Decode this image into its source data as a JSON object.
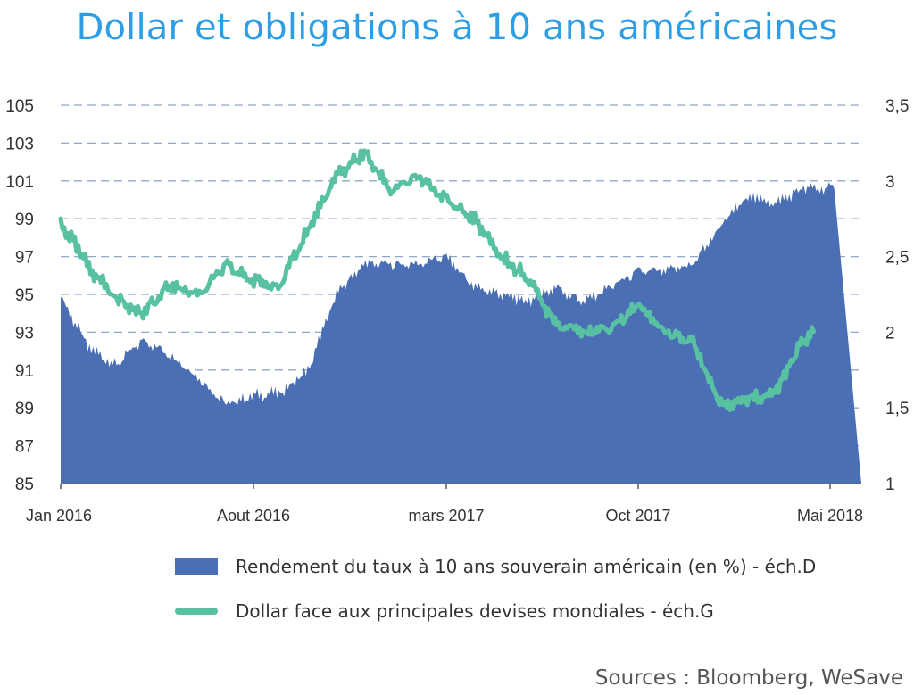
{
  "title": "Dollar et obligations à 10 ans américaines",
  "source": "Sources : Bloomberg, WeSave",
  "colors": {
    "bar": "#4a6fb5",
    "line": "#58c1a1",
    "grid": "#8fa8c8",
    "title": "#2d9ee6"
  },
  "chart_data": {
    "type": "area",
    "title": "Dollar et obligations à 10 ans américaines",
    "grid": "horizontal dashed",
    "legend_position": "bottom",
    "x_ticks": [
      "Jan 2016",
      "Aout 2016",
      "mars 2017",
      "Oct 2017",
      "Mai 2018"
    ],
    "y_left": {
      "ticks": [
        "85",
        "87",
        "89",
        "91",
        "93",
        "95",
        "97",
        "99",
        "101",
        "103",
        "105"
      ],
      "range": [
        85,
        105
      ]
    },
    "y_right": {
      "ticks": [
        "1",
        "1,5",
        "2",
        "2,5",
        "3",
        "3,5"
      ],
      "range": [
        1,
        3.5
      ]
    },
    "x_months": [
      "2016-01",
      "2016-02",
      "2016-03",
      "2016-04",
      "2016-05",
      "2016-06",
      "2016-07",
      "2016-08",
      "2016-09",
      "2016-10",
      "2016-11",
      "2016-12",
      "2017-01",
      "2017-02",
      "2017-03",
      "2017-04",
      "2017-05",
      "2017-06",
      "2017-07",
      "2017-08",
      "2017-09",
      "2017-10",
      "2017-11",
      "2017-12",
      "2018-01",
      "2018-02",
      "2018-03",
      "2018-04",
      "2018-05"
    ],
    "series": [
      {
        "name": "Rendement du taux à 10 ans souverain américain (en %) - éch.D",
        "axis": "right",
        "style": "area",
        "values": [
          2.24,
          1.9,
          1.78,
          1.95,
          1.85,
          1.7,
          1.52,
          1.58,
          1.6,
          1.75,
          2.25,
          2.45,
          2.45,
          2.45,
          2.5,
          2.3,
          2.25,
          2.2,
          2.3,
          2.2,
          2.3,
          2.4,
          2.4,
          2.45,
          2.7,
          2.9,
          2.85,
          2.95,
          2.95
        ]
      },
      {
        "name": "Dollar face aux principales devises mondiales - éch.G",
        "axis": "left",
        "style": "line",
        "values": [
          98.8,
          96.5,
          94.8,
          94.0,
          95.5,
          95.0,
          96.5,
          95.7,
          95.5,
          98.5,
          101.2,
          102.5,
          100.5,
          101.2,
          100.0,
          99.0,
          97.0,
          95.8,
          93.5,
          93.0,
          93.2,
          94.5,
          93.0,
          92.5,
          89.2,
          89.5,
          89.8,
          92.5,
          94.0
        ]
      }
    ]
  }
}
